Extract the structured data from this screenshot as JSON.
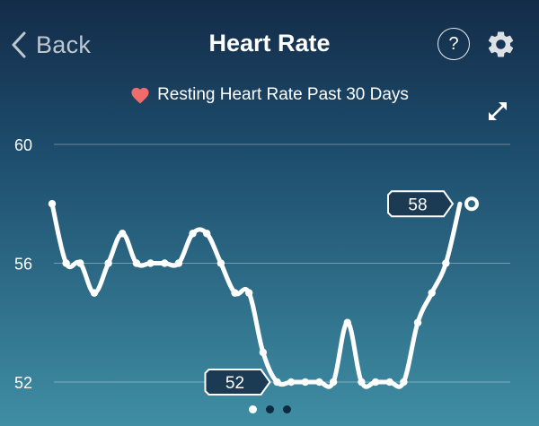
{
  "header": {
    "back_label": "Back",
    "title": "Heart Rate",
    "help_label": "?"
  },
  "subtitle": "Resting Heart Rate Past 30 Days",
  "icons": {
    "back": "chevron-left-icon",
    "help": "help-icon",
    "settings": "gear-icon",
    "heart": "heart-icon",
    "expand": "expand-icon"
  },
  "colors": {
    "heart": "#f06b6b",
    "line": "#ffffff",
    "callout_fill": "#1b3b55"
  },
  "chart_data": {
    "type": "line",
    "title": "Resting Heart Rate Past 30 Days",
    "ylim": [
      52,
      60
    ],
    "yticks": [
      "60",
      "56",
      "52"
    ],
    "grid": true,
    "x": [
      1,
      2,
      3,
      4,
      5,
      6,
      7,
      8,
      9,
      10,
      11,
      12,
      13,
      14,
      15,
      16,
      17,
      18,
      19,
      20,
      21,
      22,
      23,
      24,
      25,
      26,
      27,
      28,
      29,
      30
    ],
    "values": [
      58,
      56,
      56,
      55,
      56,
      57,
      56,
      56,
      56,
      56,
      57,
      57,
      56,
      55,
      55,
      53,
      52,
      52,
      52,
      52,
      52,
      54,
      52,
      52,
      52,
      52,
      54,
      55,
      56,
      58
    ],
    "callouts": [
      {
        "label": "52",
        "index": 16
      },
      {
        "label": "58",
        "index": 29
      }
    ]
  },
  "pager": {
    "count": 3,
    "active": 0
  }
}
